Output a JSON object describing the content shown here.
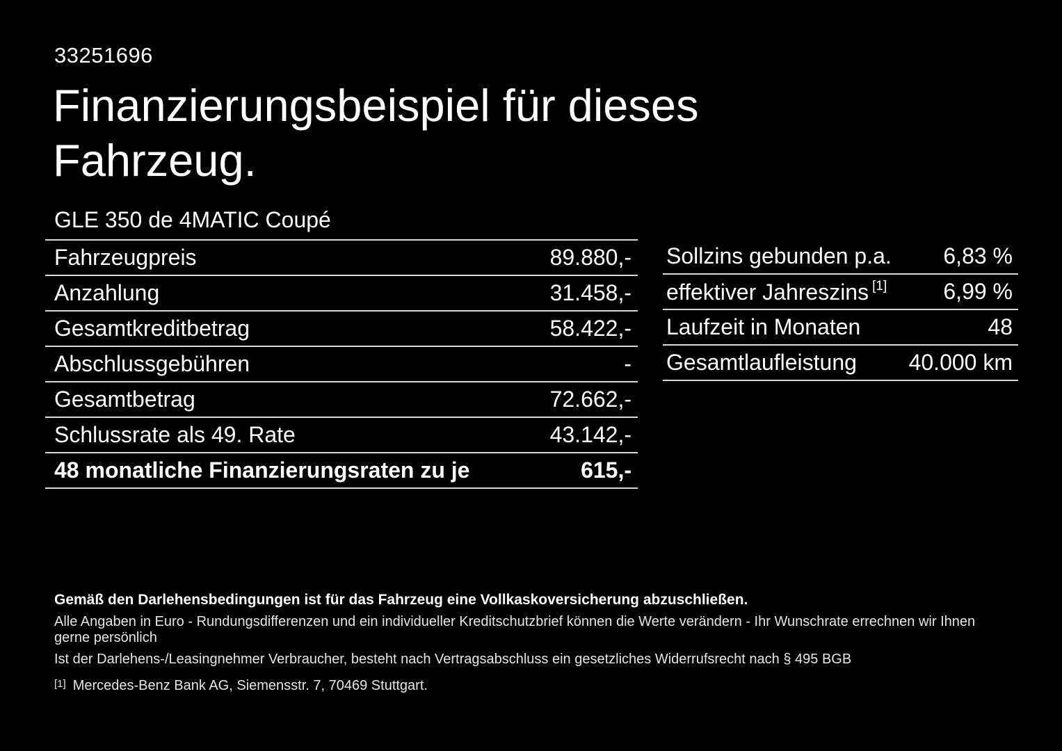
{
  "page": {
    "id_number": "33251696",
    "title_line1": "Finanzierungsbeispiel für dieses",
    "title_line2": "Fahrzeug.",
    "vehicle_name": "GLE 350 de 4MATIC Coupé"
  },
  "left_table": {
    "rows": [
      {
        "label": "Fahrzeugpreis",
        "value": "89.880,-"
      },
      {
        "label": "Anzahlung",
        "value": "31.458,-"
      },
      {
        "label": "Gesamtkreditbetrag",
        "value": "58.422,-"
      },
      {
        "label": "Abschlussgebühren",
        "value": "-"
      },
      {
        "label": "Gesamtbetrag",
        "value": "72.662,-"
      },
      {
        "label": "Schlussrate als 49. Rate",
        "value": "43.142,-"
      },
      {
        "label": "48 monatliche Finanzierungsraten zu je",
        "value": "615,-"
      }
    ]
  },
  "right_table": {
    "rows": [
      {
        "label": "Sollzins gebunden p.a.",
        "sup": "",
        "value": "6,83 %"
      },
      {
        "label": "effektiver Jahreszins",
        "sup": "[1]",
        "value": "6,99 %"
      },
      {
        "label": "Laufzeit in Monaten",
        "sup": "",
        "value": "48"
      },
      {
        "label": "Gesamtlaufleistung",
        "sup": "",
        "value": "40.000 km"
      }
    ]
  },
  "footer": {
    "bold_line": "Gemäß den Darlehensbedingungen ist für das Fahrzeug eine Vollkaskoversicherung abzuschließen.",
    "line2": "Alle Angaben in Euro - Rundungsdifferenzen und ein individueller Kreditschutzbrief können die Werte verändern - Ihr Wunschrate errechnen wir Ihnen gerne persönlich",
    "line3": "Ist der Darlehens-/Leasingnehmer Verbraucher, besteht nach Vertragsabschluss ein gesetzliches Widerrufsrecht nach § 495 BGB",
    "footnote_marker": "[1]",
    "footnote_text": "Mercedes-Benz Bank AG, Siemensstr. 7, 70469 Stuttgart."
  },
  "colors": {
    "background": "#000000",
    "text": "#ffffff",
    "divider": "#d9d9d9"
  }
}
